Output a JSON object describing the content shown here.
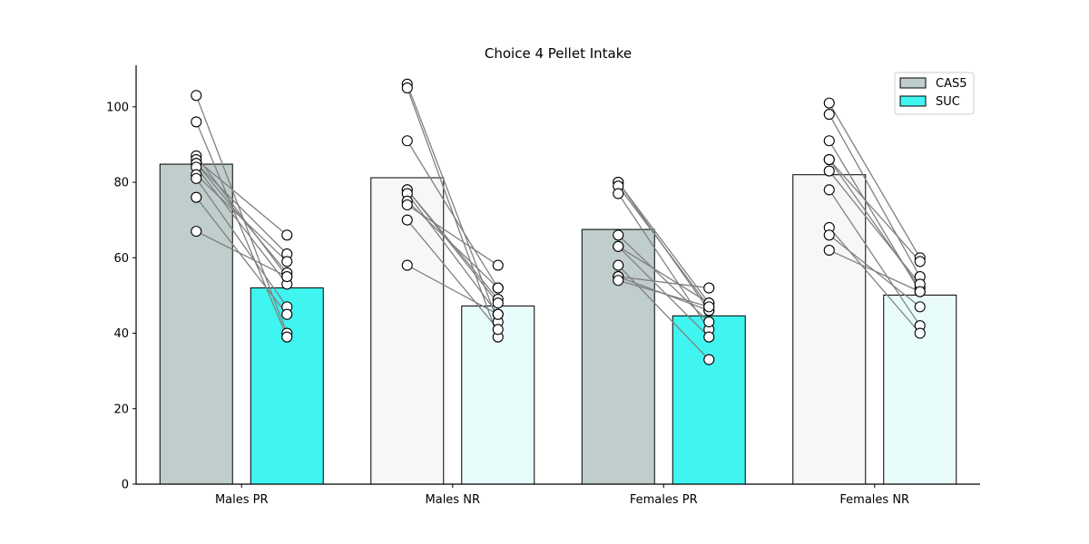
{
  "chart_data": {
    "type": "bar",
    "title": "Choice  4 Pellet Intake",
    "xlabel": "",
    "ylabel": "",
    "ylim": [
      0,
      111
    ],
    "yticks": [
      0,
      20,
      40,
      60,
      80,
      100
    ],
    "categories": [
      "Males PR",
      "Males NR",
      "Females PR",
      "Females NR"
    ],
    "grid": false,
    "legend": {
      "position": "top-right",
      "entries": [
        {
          "label": "CAS5",
          "color": "#bfcdcc"
        },
        {
          "label": "SUC",
          "color": "#40f4f0"
        }
      ]
    },
    "series": [
      {
        "name": "CAS5",
        "values": [
          84.8,
          81.2,
          67.5,
          82.0
        ],
        "bar_colors": [
          "#bfcdcc",
          "#f6f8f7",
          "#bfcdcc",
          "#f6f8f7"
        ]
      },
      {
        "name": "SUC",
        "values": [
          52.0,
          47.2,
          44.6,
          50.1
        ],
        "bar_colors": [
          "#40f4f0",
          "#e9fcfc",
          "#40f4f0",
          "#e9fcfc"
        ]
      }
    ],
    "paired_points": [
      [
        [
          103,
          40
        ],
        [
          96,
          39
        ],
        [
          87,
          55
        ],
        [
          86,
          66
        ],
        [
          85,
          56
        ],
        [
          85,
          61
        ],
        [
          84,
          53
        ],
        [
          82,
          59
        ],
        [
          81,
          47
        ],
        [
          76,
          45
        ],
        [
          67,
          55
        ]
      ],
      [
        [
          106,
          43
        ],
        [
          105,
          39
        ],
        [
          91,
          52
        ],
        [
          78,
          49
        ],
        [
          78,
          48
        ],
        [
          77,
          45
        ],
        [
          75,
          52
        ],
        [
          74,
          58
        ],
        [
          70,
          41
        ],
        [
          58,
          45
        ]
      ],
      [
        [
          80,
          48
        ],
        [
          80,
          46
        ],
        [
          79,
          47
        ],
        [
          77,
          41
        ],
        [
          66,
          43
        ],
        [
          63,
          39
        ],
        [
          63,
          48
        ],
        [
          58,
          33
        ],
        [
          55,
          46
        ],
        [
          55,
          52
        ],
        [
          54,
          47
        ]
      ],
      [
        [
          101,
          60
        ],
        [
          98,
          55
        ],
        [
          91,
          51
        ],
        [
          86,
          59
        ],
        [
          86,
          52
        ],
        [
          83,
          53
        ],
        [
          78,
          42
        ],
        [
          68,
          40
        ],
        [
          66,
          47
        ],
        [
          62,
          51
        ]
      ]
    ]
  }
}
